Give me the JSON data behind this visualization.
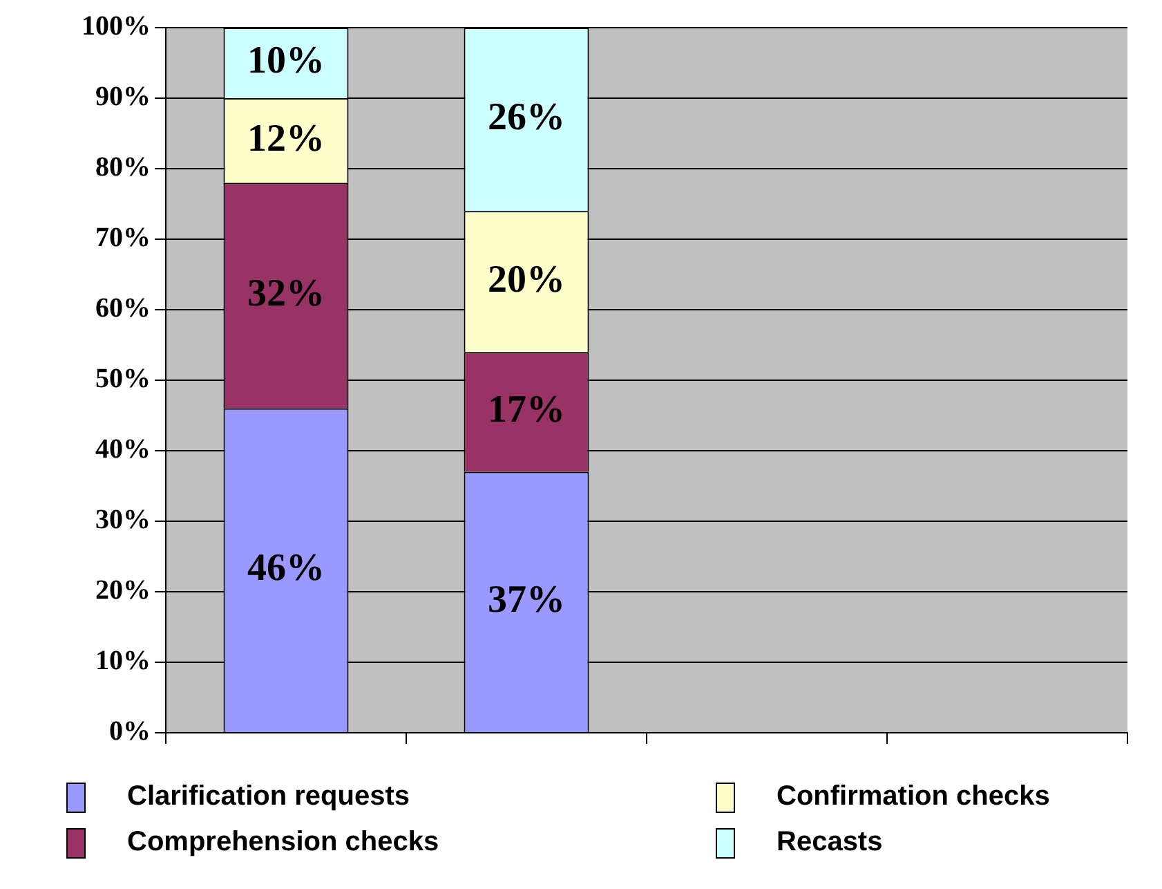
{
  "chart_data": {
    "type": "bar",
    "stacked": true,
    "categories": [
      null,
      null,
      null,
      null
    ],
    "series": [
      {
        "name": "Clarification requests",
        "color": "#9999ff",
        "values": [
          46,
          37,
          null,
          null
        ],
        "value_labels": [
          "46%",
          "37%",
          null,
          null
        ]
      },
      {
        "name": "Comprehension checks",
        "color": "#993366",
        "values": [
          32,
          17,
          null,
          null
        ],
        "value_labels": [
          "32%",
          "17%",
          null,
          null
        ]
      },
      {
        "name": "Confirmation checks",
        "color": "#ffffcc",
        "values": [
          12,
          20,
          null,
          null
        ],
        "value_labels": [
          "12%",
          "20%",
          null,
          null
        ]
      },
      {
        "name": "Recasts",
        "color": "#ccffff",
        "values": [
          10,
          26,
          null,
          null
        ],
        "value_labels": [
          "10%",
          "26%",
          null,
          null
        ]
      }
    ],
    "ylim": [
      0,
      100
    ],
    "yticks": [
      {
        "value": 0,
        "label": "0%"
      },
      {
        "value": 10,
        "label": "10%"
      },
      {
        "value": 20,
        "label": "20%"
      },
      {
        "value": 30,
        "label": "30%"
      },
      {
        "value": 40,
        "label": "40%"
      },
      {
        "value": 50,
        "label": "50%"
      },
      {
        "value": 60,
        "label": "60%"
      },
      {
        "value": 70,
        "label": "70%"
      },
      {
        "value": 80,
        "label": "80%"
      },
      {
        "value": 90,
        "label": "90%"
      },
      {
        "value": 100,
        "label": "100%"
      }
    ],
    "grid": "y",
    "legend": "bottom"
  }
}
